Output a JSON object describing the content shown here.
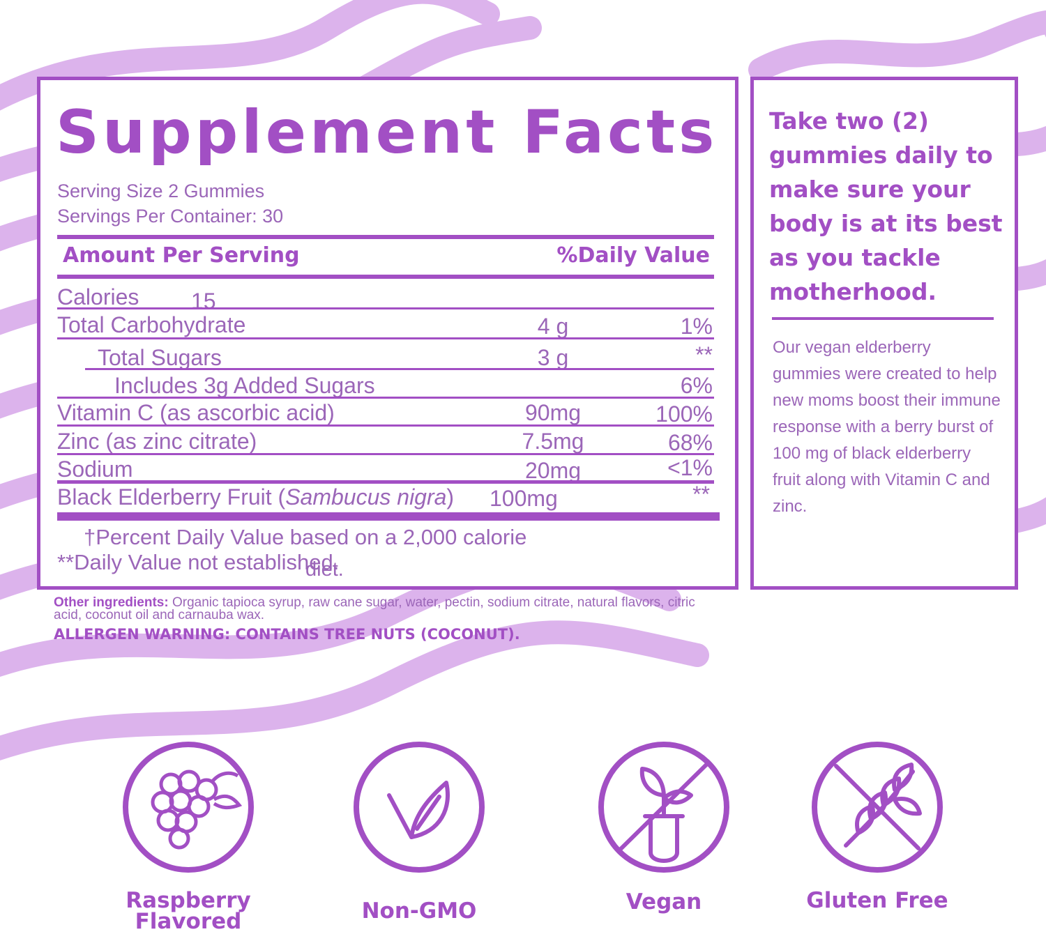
{
  "facts": {
    "title": "Supplement Facts",
    "serving_size": "Serving Size 2 Gummies",
    "servings_per_container": "Servings Per Container: 30",
    "header_amount": "Amount Per Serving",
    "header_dv": "%Daily Value",
    "rows": [
      {
        "name": "Calories",
        "amount": "15",
        "dv": ""
      },
      {
        "name": "Total Carbohydrate",
        "amount": "4 g",
        "dv": "1%"
      },
      {
        "name": "Total Sugars",
        "amount": "3 g",
        "dv": "**"
      },
      {
        "name": "Includes 3g Added Sugars",
        "amount": "",
        "dv": "6%"
      },
      {
        "name": "Vitamin C (as ascorbic acid)",
        "amount": "90mg",
        "dv": "100%"
      },
      {
        "name": "Zinc (as zinc citrate)",
        "amount": "7.5mg",
        "dv": "68%"
      },
      {
        "name": "Sodium",
        "amount": "20mg",
        "dv": "<1%"
      },
      {
        "name": "Black Elderberry Fruit",
        "name_italic": "Sambucus nigra",
        "amount": "100mg",
        "dv": "**"
      }
    ],
    "footnote_1": "Percent Daily Value based on a 2,000 calorie",
    "footnote_1_end": "diet.",
    "footnote_2": "**Daily Value not established."
  },
  "side": {
    "heading": "Take two (2) gummies daily to make sure your body is at its best as you tackle motherhood.",
    "body": "Our vegan elderberry gummies were created to help new moms boost their immune response with a berry burst of 100 mg of black elderberry fruit along with Vitamin C and zinc."
  },
  "ingredients": {
    "label": "Other ingredients:",
    "text": " Organic tapioca syrup, raw cane sugar, water, pectin, sodium citrate, natural flavors, citric acid, coconut oil and carnauba wax.",
    "allergen": "ALLERGEN WARNING: CONTAINS TREE NUTS (COCONUT)."
  },
  "badges": [
    {
      "label": "Raspberry Flavored",
      "icon": "raspberry-icon"
    },
    {
      "label": "Non-GMO",
      "icon": "leaf-icon"
    },
    {
      "label": "Vegan",
      "icon": "no-test-tube-icon"
    },
    {
      "label": "Gluten Free",
      "icon": "no-wheat-icon"
    }
  ],
  "colors": {
    "accent": "#a24fc4",
    "text": "#9b66b8",
    "wave": "#d9aeea"
  }
}
